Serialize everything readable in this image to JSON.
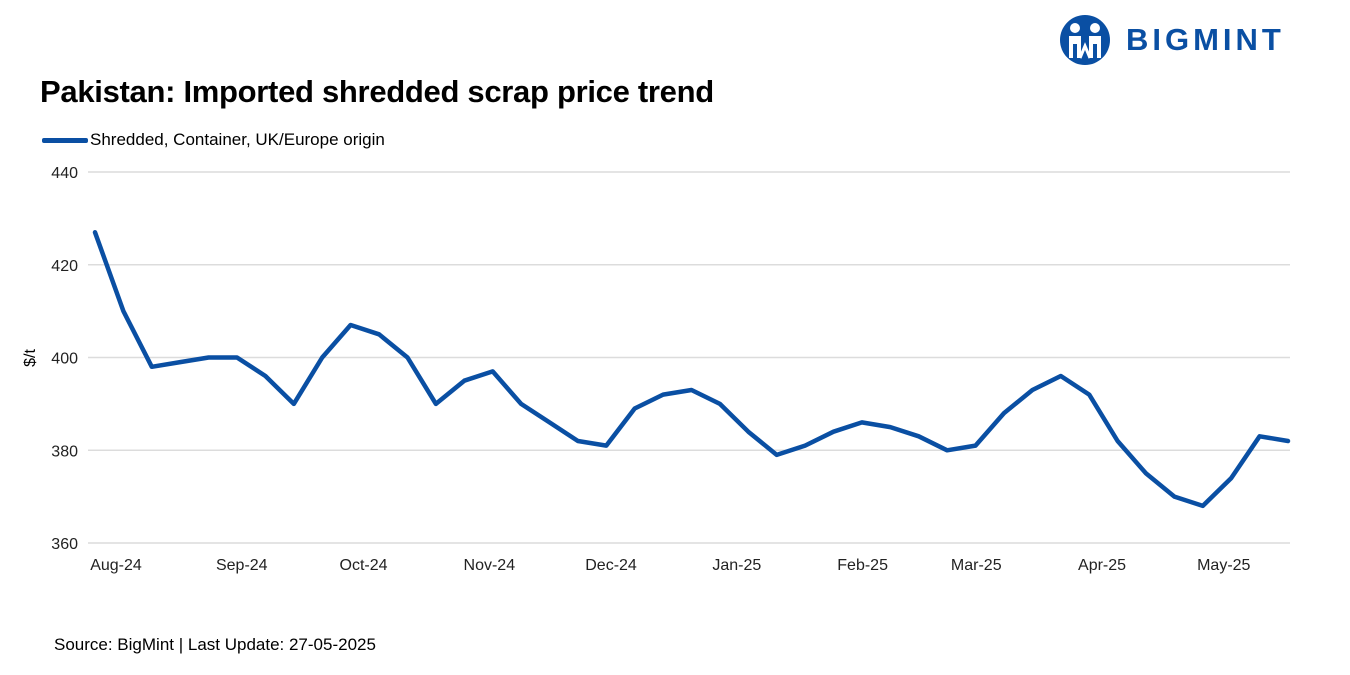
{
  "brand": {
    "logo_text": "BIGMINT",
    "color": "#0a4fa3"
  },
  "chart_data": {
    "type": "line",
    "title": "Pakistan: Imported shredded scrap price trend",
    "ylabel": "$/t",
    "xlabel": "",
    "ylim": [
      360,
      440
    ],
    "yticks": [
      360,
      380,
      400,
      420,
      440
    ],
    "grid": true,
    "legend_position": "top-left",
    "xticks": [
      {
        "date": "2024-08-01",
        "label": "Aug-24"
      },
      {
        "date": "2024-09-01",
        "label": "Sep-24"
      },
      {
        "date": "2024-10-01",
        "label": "Oct-24"
      },
      {
        "date": "2024-11-01",
        "label": "Nov-24"
      },
      {
        "date": "2024-12-01",
        "label": "Dec-24"
      },
      {
        "date": "2025-01-01",
        "label": "Jan-25"
      },
      {
        "date": "2025-02-01",
        "label": "Feb-25"
      },
      {
        "date": "2025-03-01",
        "label": "Mar-25"
      },
      {
        "date": "2025-04-01",
        "label": "Apr-25"
      },
      {
        "date": "2025-05-01",
        "label": "May-25"
      }
    ],
    "x": [
      "2024-08-01",
      "2024-08-08",
      "2024-08-15",
      "2024-08-22",
      "2024-08-29",
      "2024-09-05",
      "2024-09-12",
      "2024-09-19",
      "2024-09-26",
      "2024-10-03",
      "2024-10-10",
      "2024-10-17",
      "2024-10-24",
      "2024-10-31",
      "2024-11-07",
      "2024-11-14",
      "2024-11-21",
      "2024-11-28",
      "2024-12-05",
      "2024-12-12",
      "2024-12-19",
      "2024-12-26",
      "2025-01-02",
      "2025-01-09",
      "2025-01-16",
      "2025-01-23",
      "2025-01-30",
      "2025-02-06",
      "2025-02-13",
      "2025-02-20",
      "2025-02-27",
      "2025-03-06",
      "2025-03-13",
      "2025-03-20",
      "2025-03-27",
      "2025-04-03",
      "2025-04-10",
      "2025-04-17",
      "2025-04-24",
      "2025-05-01",
      "2025-05-08",
      "2025-05-15",
      "2025-05-22"
    ],
    "series": [
      {
        "name": "Shredded, Container, UK/Europe origin",
        "color": "#0a4fa3",
        "values": [
          427,
          410,
          398,
          399,
          400,
          400,
          396,
          390,
          400,
          407,
          405,
          400,
          390,
          395,
          397,
          390,
          386,
          382,
          381,
          389,
          392,
          393,
          390,
          384,
          379,
          381,
          384,
          386,
          385,
          383,
          380,
          381,
          388,
          393,
          396,
          392,
          382,
          375,
          370,
          368,
          374,
          383,
          382
        ]
      }
    ]
  },
  "footer": {
    "source": "Source: BigMint | Last Update: 27-05-2025"
  }
}
